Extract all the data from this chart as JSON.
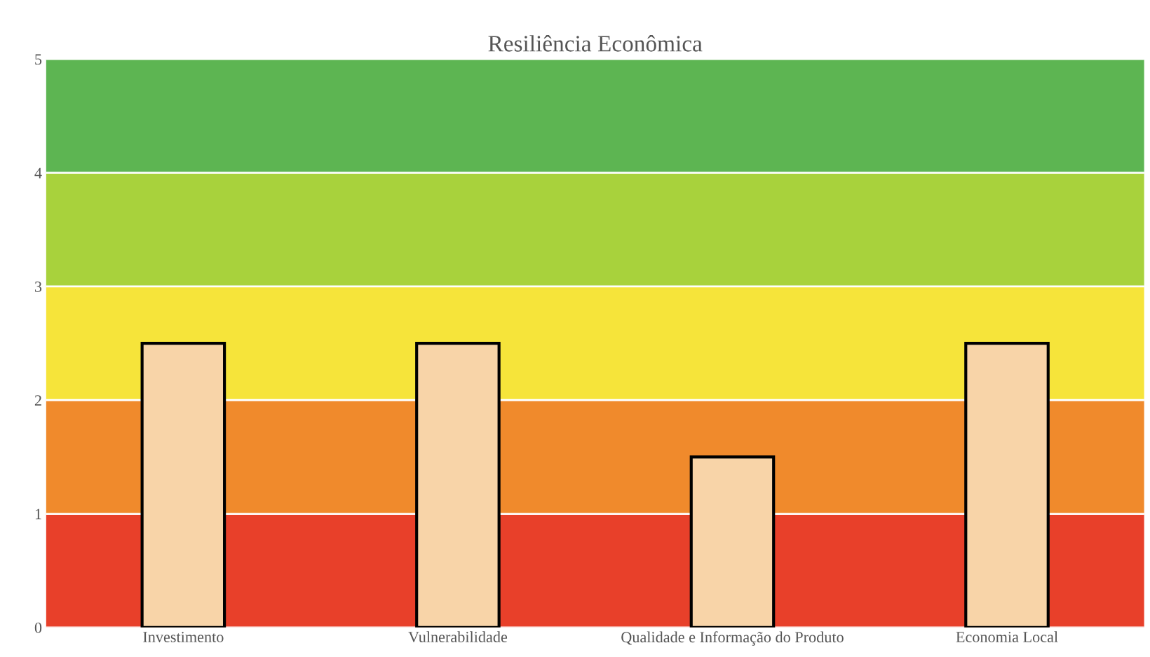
{
  "chart_data": {
    "type": "bar",
    "title": "Resiliência Econômica",
    "categories": [
      "Investimento",
      "Vulnerabilidade",
      "Qualidade e Informação do Produto",
      "Economia Local"
    ],
    "values": [
      2.5,
      2.5,
      1.5,
      2.5
    ],
    "color": "#f8d4a8",
    "ylim": [
      0,
      5
    ],
    "yticks": [
      0,
      1,
      2,
      3,
      4,
      5
    ],
    "grid": "y",
    "bands": [
      {
        "axis": "y",
        "from": 0,
        "to": 1,
        "color": "#e8402a"
      },
      {
        "axis": "y",
        "from": 1,
        "to": 2,
        "color": "#f08a2c"
      },
      {
        "axis": "y",
        "from": 2,
        "to": 3,
        "color": "#f6e43a"
      },
      {
        "axis": "y",
        "from": 3,
        "to": 4,
        "color": "#a8d23c"
      },
      {
        "axis": "y",
        "from": 4,
        "to": 5,
        "color": "#5db552"
      }
    ]
  }
}
